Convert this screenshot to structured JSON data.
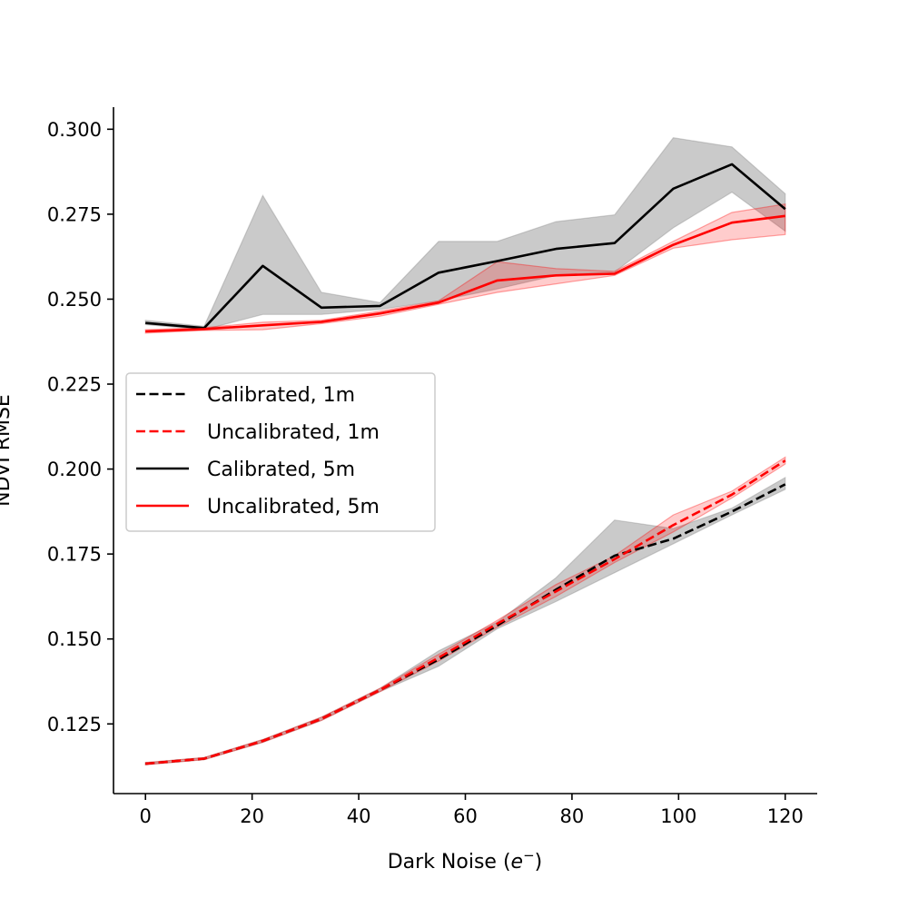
{
  "chart_data": {
    "type": "line",
    "title": "",
    "xlabel": "Dark Noise (",
    "xlabel_italic": "e",
    "xlabel_superscript": "−",
    "xlabel_suffix": ")",
    "ylabel": "NDVI RMSE",
    "xlim": [
      -6,
      126
    ],
    "ylim": [
      0.1045,
      0.3065
    ],
    "xticks": [
      0,
      20,
      40,
      60,
      80,
      100,
      120
    ],
    "xtick_labels": [
      "0",
      "20",
      "40",
      "60",
      "80",
      "100",
      "120"
    ],
    "yticks": [
      0.125,
      0.15,
      0.175,
      0.2,
      0.225,
      0.25,
      0.275,
      0.3
    ],
    "ytick_labels": [
      "0.125",
      "0.150",
      "0.175",
      "0.200",
      "0.225",
      "0.250",
      "0.275",
      "0.300"
    ],
    "grid": false,
    "legend_position": "center-left",
    "x": [
      0,
      11,
      22,
      33,
      44,
      55,
      66,
      77,
      88,
      99,
      110,
      120
    ],
    "series": [
      {
        "name": "Calibrated, 1m",
        "color": "#000000",
        "linestyle": "dashed",
        "values": [
          0.1133,
          0.1148,
          0.12,
          0.1265,
          0.135,
          0.144,
          0.154,
          0.1645,
          0.1745,
          0.1795,
          0.1875,
          0.1955
        ],
        "lower": [
          0.113,
          0.1145,
          0.1196,
          0.126,
          0.1345,
          0.142,
          0.153,
          0.161,
          0.1695,
          0.178,
          0.1865,
          0.194
        ],
        "upper": [
          0.1136,
          0.1151,
          0.1204,
          0.127,
          0.1355,
          0.1465,
          0.155,
          0.168,
          0.185,
          0.1825,
          0.1885,
          0.1975
        ],
        "band_color": "#808080"
      },
      {
        "name": "Uncalibrated, 1m",
        "color": "#ff0000",
        "linestyle": "dashed",
        "values": [
          0.1133,
          0.1148,
          0.12,
          0.1265,
          0.135,
          0.1445,
          0.1545,
          0.164,
          0.1735,
          0.1835,
          0.1925,
          0.2025
        ],
        "lower": [
          0.113,
          0.1145,
          0.1196,
          0.126,
          0.1345,
          0.1435,
          0.1535,
          0.1625,
          0.1725,
          0.1815,
          0.1915,
          0.2015
        ],
        "upper": [
          0.1136,
          0.1151,
          0.1204,
          0.127,
          0.1355,
          0.1455,
          0.1555,
          0.166,
          0.1745,
          0.1865,
          0.1935,
          0.2035
        ],
        "band_color": "#ff0000"
      },
      {
        "name": "Calibrated, 5m",
        "color": "#000000",
        "linestyle": "solid",
        "values": [
          0.243,
          0.2415,
          0.2598,
          0.2475,
          0.248,
          0.2578,
          0.2612,
          0.2648,
          0.2665,
          0.2825,
          0.2897,
          0.2765
        ],
        "lower": [
          0.2425,
          0.241,
          0.2455,
          0.2455,
          0.247,
          0.2495,
          0.253,
          0.257,
          0.258,
          0.271,
          0.2815,
          0.27
        ],
        "upper": [
          0.2438,
          0.242,
          0.2805,
          0.252,
          0.249,
          0.267,
          0.267,
          0.2728,
          0.2748,
          0.2975,
          0.2948,
          0.281
        ],
        "band_color": "#808080"
      },
      {
        "name": "Uncalibrated, 5m",
        "color": "#ff0000",
        "linestyle": "solid",
        "values": [
          0.2405,
          0.2412,
          0.2423,
          0.2433,
          0.2458,
          0.249,
          0.2555,
          0.257,
          0.2575,
          0.266,
          0.2725,
          0.2745
        ],
        "lower": [
          0.24,
          0.2408,
          0.241,
          0.2428,
          0.245,
          0.2485,
          0.252,
          0.2545,
          0.257,
          0.265,
          0.2675,
          0.269
        ],
        "upper": [
          0.241,
          0.2416,
          0.2432,
          0.2438,
          0.2465,
          0.2495,
          0.261,
          0.259,
          0.2582,
          0.267,
          0.2755,
          0.278
        ],
        "band_color": "#ff0000"
      }
    ]
  }
}
